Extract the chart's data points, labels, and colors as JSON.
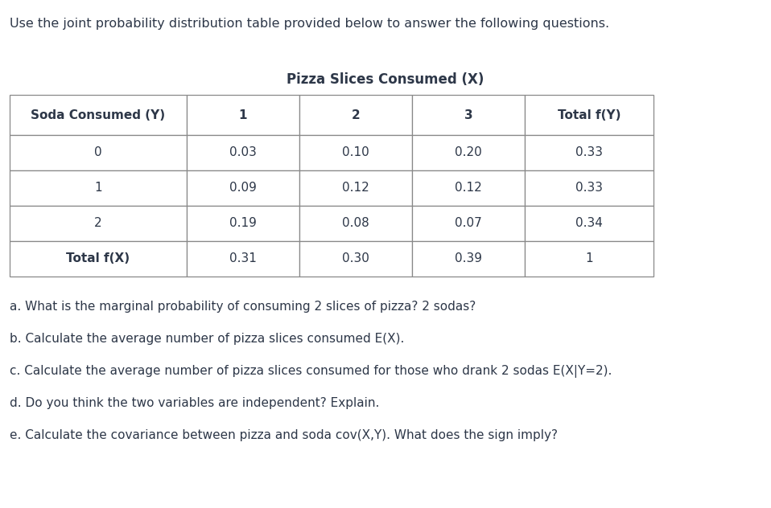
{
  "title_text": "Use the joint probability distribution table provided below to answer the following questions.",
  "table_header_col": "Pizza Slices Consumed (X)",
  "col_headers": [
    "Soda Consumed (Y)",
    "1",
    "2",
    "3",
    "Total f(Y)"
  ],
  "row_labels": [
    "0",
    "1",
    "2",
    "Total f(X)"
  ],
  "table_data": [
    [
      "0.03",
      "0.10",
      "0.20",
      "0.33"
    ],
    [
      "0.09",
      "0.12",
      "0.12",
      "0.33"
    ],
    [
      "0.19",
      "0.08",
      "0.07",
      "0.34"
    ],
    [
      "0.31",
      "0.30",
      "0.39",
      "1"
    ]
  ],
  "questions": [
    "a. What is the marginal probability of consuming 2 slices of pizza? 2 sodas?",
    "b. Calculate the average number of pizza slices consumed E(X).",
    "c. Calculate the average number of pizza slices consumed for those who drank 2 sodas E(X|Y=2).",
    "d. Do you think the two variables are independent? Explain.",
    "e. Calculate the covariance between pizza and soda cov(X,Y). What does the sign imply?"
  ],
  "bg_color": "#ffffff",
  "text_color": "#2d3748",
  "border_color": "#888888",
  "font_size": 11.0,
  "title_font_size": 11.5,
  "table_title_font_size": 12.0
}
